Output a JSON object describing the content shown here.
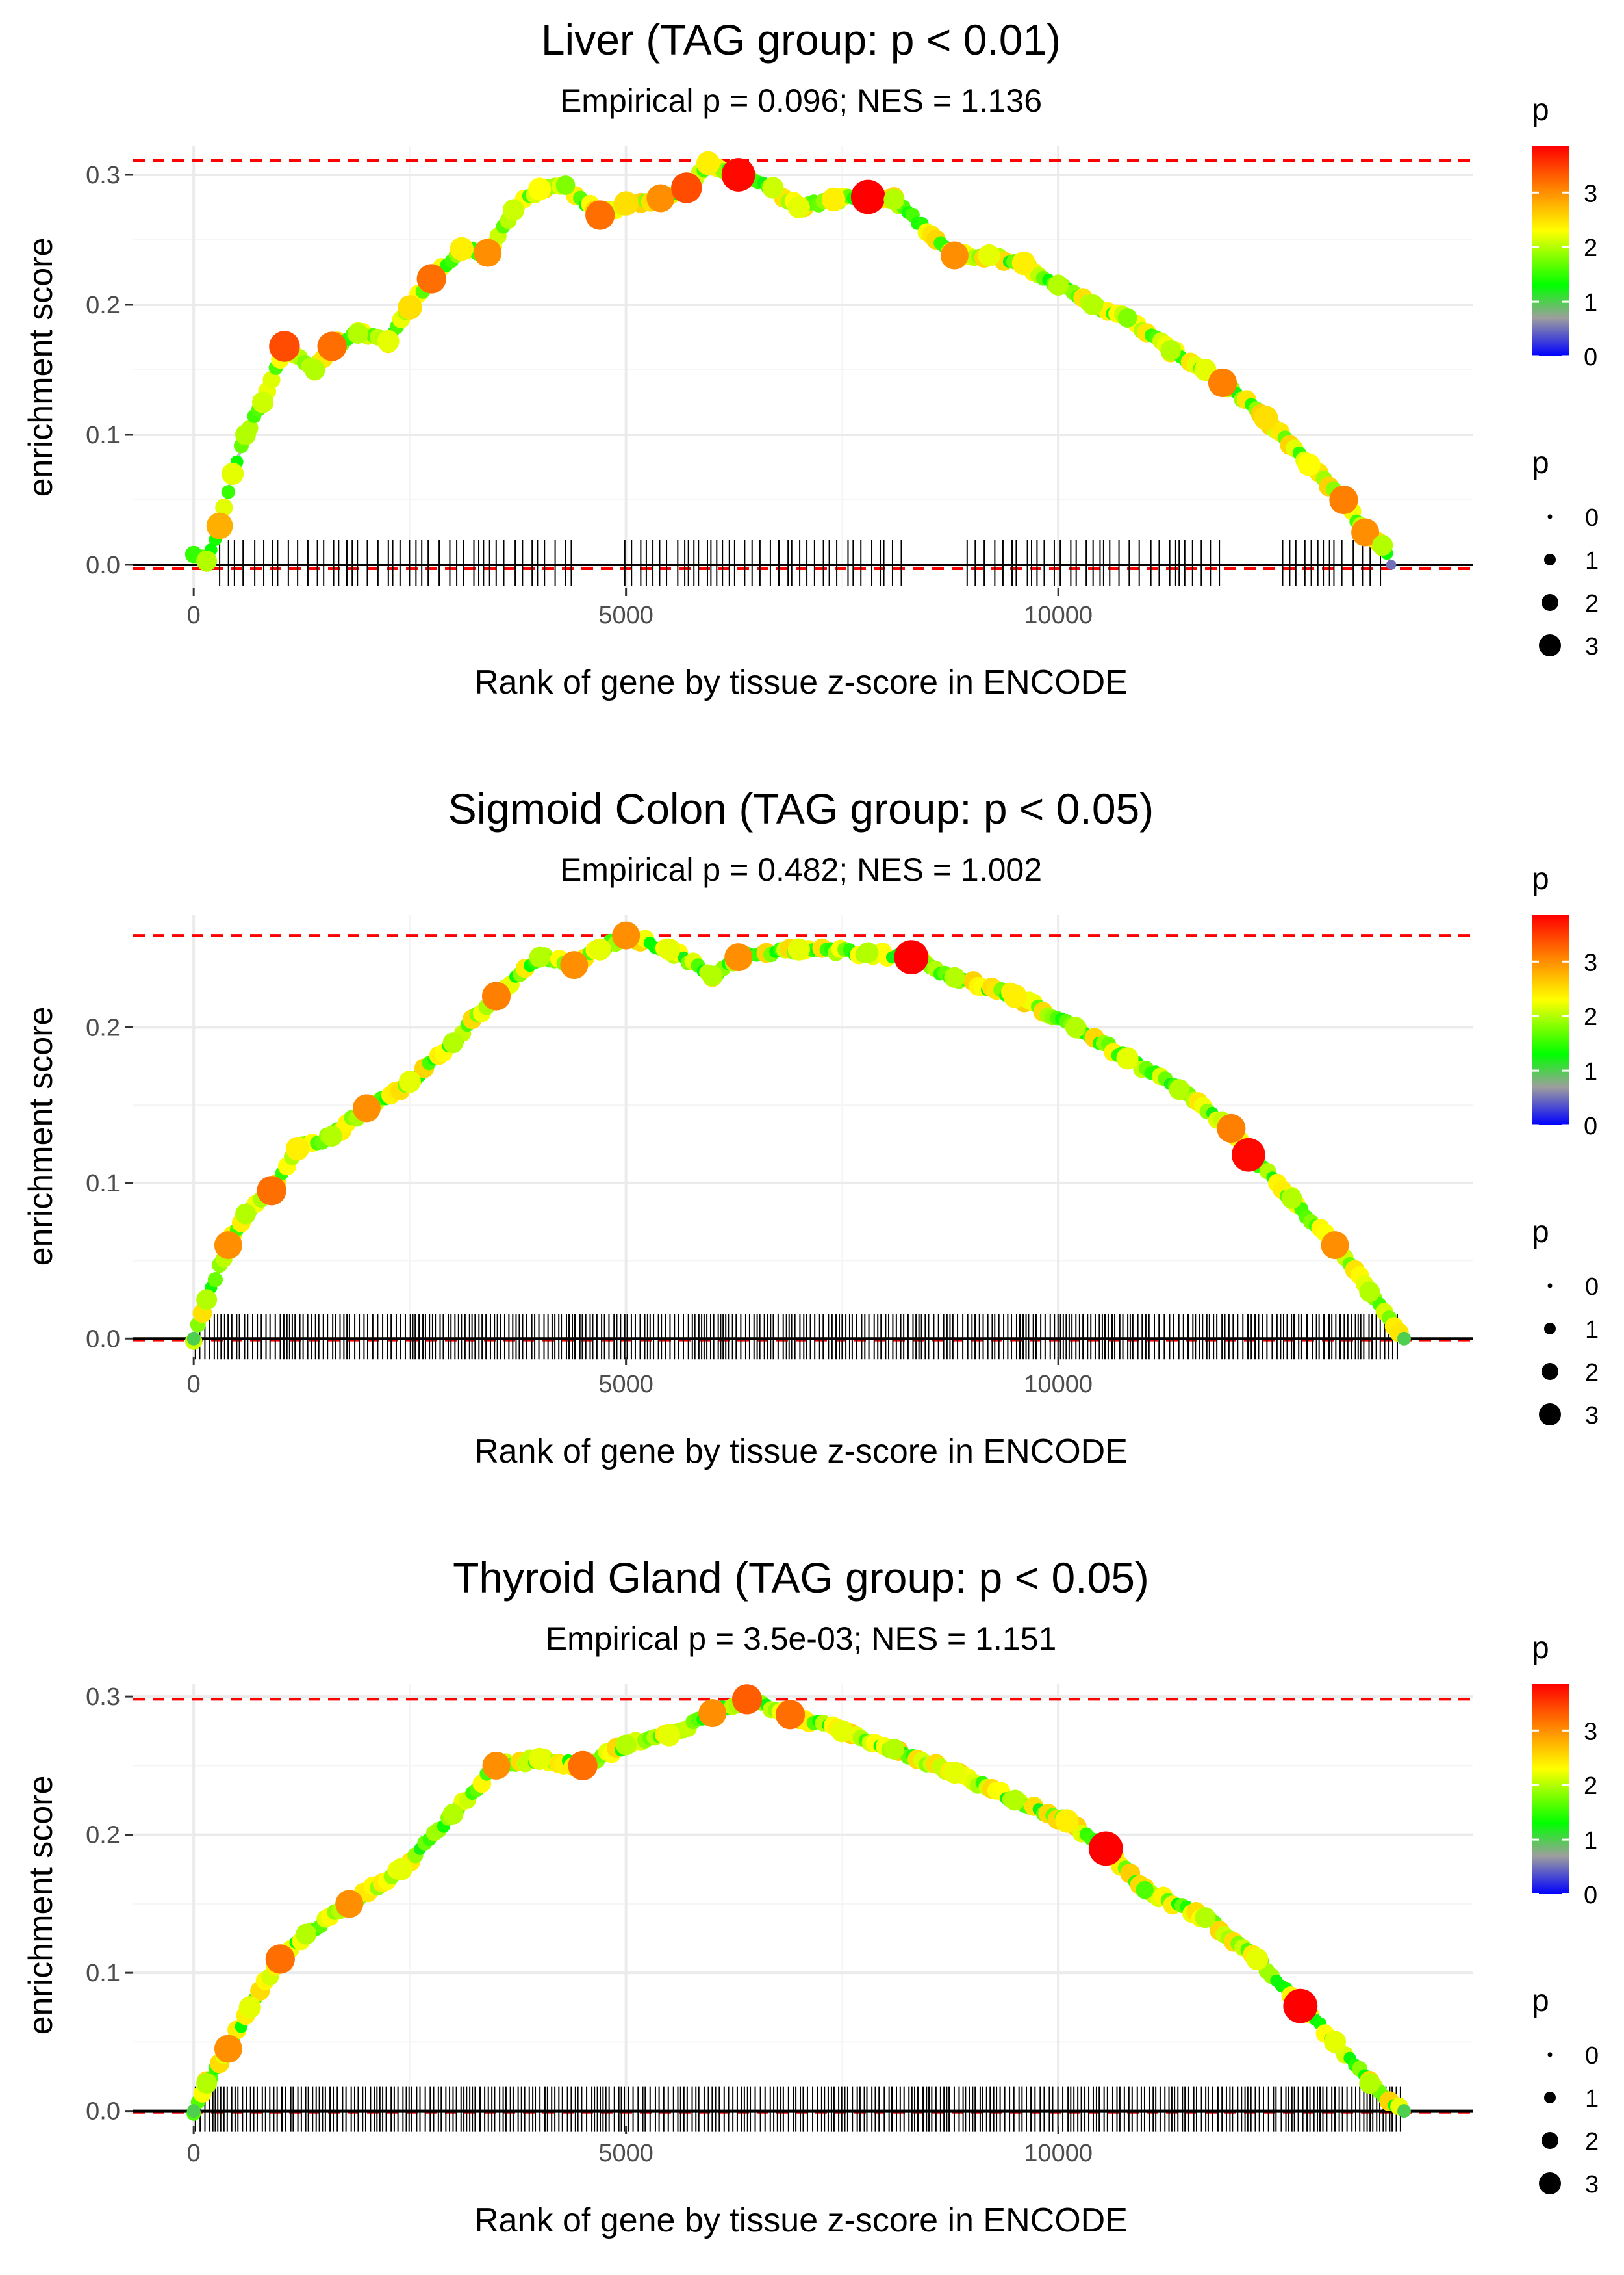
{
  "chart_data": [
    {
      "type": "line",
      "title": "Liver (TAG group: p < 0.01)",
      "subtitle": "Empirical p = 0.096; NES = 1.136",
      "xlabel": "Rank of gene by tissue z-score in ENCODE",
      "ylabel": "enrichment score",
      "xlim": [
        -700,
        14800
      ],
      "ylim": [
        -0.018,
        0.322
      ],
      "xticks": [
        0,
        5000,
        10000
      ],
      "xtick_labels": [
        "0",
        "5000",
        "10000"
      ],
      "yticks": [
        0,
        0.1,
        0.2,
        0.3
      ],
      "ytick_labels": [
        "0.0",
        "0.1",
        "0.2",
        "0.3"
      ],
      "max_es": 0.311,
      "min_es": -0.003,
      "curve": [
        {
          "x": 0,
          "y": 0.008,
          "p": 1.5
        },
        {
          "x": 150,
          "y": 0.003,
          "p": 2.0
        },
        {
          "x": 300,
          "y": 0.03,
          "p": 2.8
        },
        {
          "x": 450,
          "y": 0.07,
          "p": 2.2
        },
        {
          "x": 600,
          "y": 0.1,
          "p": 2.0
        },
        {
          "x": 800,
          "y": 0.125,
          "p": 2.1
        },
        {
          "x": 1050,
          "y": 0.168,
          "p": 3.4
        },
        {
          "x": 1400,
          "y": 0.15,
          "p": 2.0
        },
        {
          "x": 1600,
          "y": 0.168,
          "p": 3.2
        },
        {
          "x": 1900,
          "y": 0.178,
          "p": 2.0
        },
        {
          "x": 2250,
          "y": 0.172,
          "p": 2.2
        },
        {
          "x": 2500,
          "y": 0.198,
          "p": 2.5
        },
        {
          "x": 2750,
          "y": 0.22,
          "p": 3.2
        },
        {
          "x": 3100,
          "y": 0.243,
          "p": 2.4
        },
        {
          "x": 3400,
          "y": 0.24,
          "p": 3.0
        },
        {
          "x": 3700,
          "y": 0.273,
          "p": 2.1
        },
        {
          "x": 4000,
          "y": 0.289,
          "p": 2.3
        },
        {
          "x": 4300,
          "y": 0.292,
          "p": 1.8
        },
        {
          "x": 4700,
          "y": 0.269,
          "p": 3.2
        },
        {
          "x": 5000,
          "y": 0.278,
          "p": 2.5
        },
        {
          "x": 5400,
          "y": 0.282,
          "p": 3.0
        },
        {
          "x": 5700,
          "y": 0.29,
          "p": 3.4
        },
        {
          "x": 5950,
          "y": 0.309,
          "p": 2.4
        },
        {
          "x": 6300,
          "y": 0.3,
          "p": 3.8
        },
        {
          "x": 6700,
          "y": 0.29,
          "p": 2.1
        },
        {
          "x": 7000,
          "y": 0.275,
          "p": 2.2
        },
        {
          "x": 7400,
          "y": 0.281,
          "p": 2.4
        },
        {
          "x": 7800,
          "y": 0.283,
          "p": 3.9
        },
        {
          "x": 8100,
          "y": 0.281,
          "p": 2.0
        },
        {
          "x": 8800,
          "y": 0.238,
          "p": 3.0
        },
        {
          "x": 9200,
          "y": 0.238,
          "p": 2.2
        },
        {
          "x": 9600,
          "y": 0.232,
          "p": 2.4
        },
        {
          "x": 10000,
          "y": 0.215,
          "p": 2.0
        },
        {
          "x": 10400,
          "y": 0.2,
          "p": 2.0
        },
        {
          "x": 10800,
          "y": 0.19,
          "p": 1.8
        },
        {
          "x": 11300,
          "y": 0.165,
          "p": 2.0
        },
        {
          "x": 11700,
          "y": 0.15,
          "p": 2.2
        },
        {
          "x": 11900,
          "y": 0.14,
          "p": 3.1
        },
        {
          "x": 12400,
          "y": 0.113,
          "p": 2.5
        },
        {
          "x": 12900,
          "y": 0.077,
          "p": 2.3
        },
        {
          "x": 13300,
          "y": 0.05,
          "p": 3.1
        },
        {
          "x": 13550,
          "y": 0.025,
          "p": 3.0
        },
        {
          "x": 13750,
          "y": 0.015,
          "p": 2.0
        },
        {
          "x": 13850,
          "y": 0.0,
          "p": 0.5
        }
      ],
      "rug_density": "sparse"
    },
    {
      "type": "line",
      "title": "Sigmoid Colon (TAG group: p < 0.05)",
      "subtitle": "Empirical p = 0.482; NES = 1.002",
      "xlabel": "Rank of gene by tissue z-score in ENCODE",
      "ylabel": "enrichment score",
      "xlim": [
        -700,
        14800
      ],
      "ylim": [
        -0.012,
        0.272
      ],
      "xticks": [
        0,
        5000,
        10000
      ],
      "xtick_labels": [
        "0",
        "5000",
        "10000"
      ],
      "yticks": [
        0,
        0.1,
        0.2
      ],
      "ytick_labels": [
        "0.0",
        "0.1",
        "0.2"
      ],
      "max_es": 0.259,
      "min_es": -0.001,
      "curve": [
        {
          "x": 0,
          "y": 0.0,
          "p": 1.0
        },
        {
          "x": 150,
          "y": 0.025,
          "p": 2.0
        },
        {
          "x": 400,
          "y": 0.06,
          "p": 3.0
        },
        {
          "x": 600,
          "y": 0.08,
          "p": 2.0
        },
        {
          "x": 900,
          "y": 0.095,
          "p": 3.2
        },
        {
          "x": 1200,
          "y": 0.122,
          "p": 2.4
        },
        {
          "x": 1600,
          "y": 0.13,
          "p": 2.0
        },
        {
          "x": 2000,
          "y": 0.148,
          "p": 3.0
        },
        {
          "x": 2500,
          "y": 0.165,
          "p": 2.2
        },
        {
          "x": 3000,
          "y": 0.19,
          "p": 2.0
        },
        {
          "x": 3500,
          "y": 0.22,
          "p": 3.1
        },
        {
          "x": 4000,
          "y": 0.245,
          "p": 2.0
        },
        {
          "x": 4400,
          "y": 0.24,
          "p": 3.0
        },
        {
          "x": 4700,
          "y": 0.25,
          "p": 2.2
        },
        {
          "x": 5000,
          "y": 0.259,
          "p": 3.0
        },
        {
          "x": 5500,
          "y": 0.25,
          "p": 2.2
        },
        {
          "x": 6000,
          "y": 0.233,
          "p": 2.0
        },
        {
          "x": 6300,
          "y": 0.245,
          "p": 3.0
        },
        {
          "x": 7000,
          "y": 0.25,
          "p": 2.2
        },
        {
          "x": 7800,
          "y": 0.248,
          "p": 2.0
        },
        {
          "x": 8300,
          "y": 0.245,
          "p": 3.9
        },
        {
          "x": 8800,
          "y": 0.232,
          "p": 2.0
        },
        {
          "x": 9500,
          "y": 0.22,
          "p": 2.4
        },
        {
          "x": 10200,
          "y": 0.2,
          "p": 2.0
        },
        {
          "x": 10800,
          "y": 0.18,
          "p": 2.2
        },
        {
          "x": 11400,
          "y": 0.16,
          "p": 2.0
        },
        {
          "x": 12000,
          "y": 0.135,
          "p": 3.1
        },
        {
          "x": 12200,
          "y": 0.118,
          "p": 3.8
        },
        {
          "x": 12700,
          "y": 0.09,
          "p": 2.0
        },
        {
          "x": 13200,
          "y": 0.06,
          "p": 3.0
        },
        {
          "x": 13600,
          "y": 0.03,
          "p": 2.0
        },
        {
          "x": 14000,
          "y": 0.0,
          "p": 1.0
        }
      ],
      "rug_density": "dense"
    },
    {
      "type": "line",
      "title": "Thyroid Gland (TAG group: p < 0.05)",
      "subtitle": "Empirical p = 3.5e-03; NES = 1.151",
      "xlabel": "Rank of gene by tissue z-score in ENCODE",
      "ylabel": "enrichment score",
      "xlim": [
        -700,
        14800
      ],
      "ylim": [
        -0.011,
        0.309
      ],
      "xticks": [
        0,
        5000,
        10000
      ],
      "xtick_labels": [
        "0",
        "5000",
        "10000"
      ],
      "yticks": [
        0,
        0.1,
        0.2,
        0.3
      ],
      "ytick_labels": [
        "0.0",
        "0.1",
        "0.2",
        "0.3"
      ],
      "max_es": 0.298,
      "min_es": -0.001,
      "curve": [
        {
          "x": 0,
          "y": 0.0,
          "p": 1.0
        },
        {
          "x": 150,
          "y": 0.02,
          "p": 2.0
        },
        {
          "x": 400,
          "y": 0.045,
          "p": 3.0
        },
        {
          "x": 650,
          "y": 0.075,
          "p": 2.2
        },
        {
          "x": 1000,
          "y": 0.11,
          "p": 3.2
        },
        {
          "x": 1300,
          "y": 0.128,
          "p": 2.0
        },
        {
          "x": 1800,
          "y": 0.15,
          "p": 3.0
        },
        {
          "x": 2400,
          "y": 0.175,
          "p": 2.2
        },
        {
          "x": 3000,
          "y": 0.215,
          "p": 2.0
        },
        {
          "x": 3500,
          "y": 0.25,
          "p": 3.0
        },
        {
          "x": 4000,
          "y": 0.255,
          "p": 2.2
        },
        {
          "x": 4500,
          "y": 0.25,
          "p": 3.2
        },
        {
          "x": 5000,
          "y": 0.265,
          "p": 2.0
        },
        {
          "x": 5500,
          "y": 0.272,
          "p": 2.2
        },
        {
          "x": 6000,
          "y": 0.288,
          "p": 3.0
        },
        {
          "x": 6400,
          "y": 0.298,
          "p": 3.3
        },
        {
          "x": 6900,
          "y": 0.287,
          "p": 3.2
        },
        {
          "x": 7500,
          "y": 0.275,
          "p": 2.2
        },
        {
          "x": 8100,
          "y": 0.262,
          "p": 2.0
        },
        {
          "x": 8800,
          "y": 0.245,
          "p": 2.2
        },
        {
          "x": 9500,
          "y": 0.225,
          "p": 2.0
        },
        {
          "x": 10100,
          "y": 0.21,
          "p": 2.4
        },
        {
          "x": 10550,
          "y": 0.19,
          "p": 3.9
        },
        {
          "x": 11000,
          "y": 0.16,
          "p": 1.6
        },
        {
          "x": 11700,
          "y": 0.14,
          "p": 2.0
        },
        {
          "x": 12300,
          "y": 0.11,
          "p": 2.2
        },
        {
          "x": 12800,
          "y": 0.076,
          "p": 3.9
        },
        {
          "x": 13200,
          "y": 0.05,
          "p": 2.2
        },
        {
          "x": 13600,
          "y": 0.02,
          "p": 2.0
        },
        {
          "x": 14000,
          "y": 0.0,
          "p": 1.0
        }
      ],
      "rug_density": "dense"
    }
  ],
  "legend": {
    "color_title": "p",
    "color_ticks": [
      "3",
      "2",
      "1",
      "0"
    ],
    "size_title": "p",
    "size_labels": [
      "0",
      "1",
      "2",
      "3"
    ]
  },
  "colors": {
    "curve_line": "#bdbdbd",
    "dashed": "#ff0000",
    "grid": "#ebebeb",
    "rug": "#000000",
    "scale": [
      "#0000ff",
      "#9e9e9e",
      "#00ff00",
      "#ffff00",
      "#ff7f00",
      "#ff0000"
    ]
  }
}
